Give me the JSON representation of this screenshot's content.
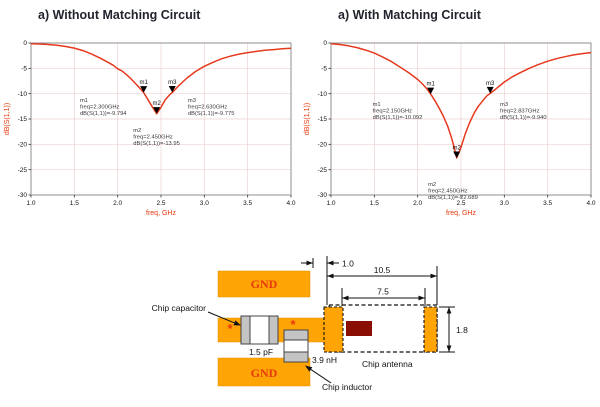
{
  "figure": {
    "subfig_left_title": "a) Without Matching Circuit",
    "subfig_right_title": "a) With Matching Circuit"
  },
  "chart_data": [
    {
      "id": "without_matching",
      "type": "line",
      "title": "a) Without Matching Circuit",
      "xlabel": "freq, GHz",
      "ylabel": "dB(S(1,1))",
      "xlim": [
        1.0,
        4.0
      ],
      "ylim": [
        -30,
        0
      ],
      "xticks": [
        "1.0",
        "1.5",
        "2.0",
        "2.5",
        "3.0",
        "3.5",
        "4.0"
      ],
      "yticks": [
        "0",
        "-5",
        "-10",
        "-15",
        "-20",
        "-25",
        "-30"
      ],
      "grid": true,
      "axis_label_color": "#e8380d",
      "series": [
        {
          "name": "dB(S(1,1))",
          "color": "#e6391e",
          "x": [
            1.0,
            1.1,
            1.2,
            1.3,
            1.4,
            1.5,
            1.6,
            1.7,
            1.8,
            1.9,
            1.95,
            2.0,
            2.05,
            2.1,
            2.15,
            2.2,
            2.25,
            2.3,
            2.35,
            2.4,
            2.45,
            2.5,
            2.55,
            2.6,
            2.63,
            2.7,
            2.75,
            2.8,
            2.9,
            3.0,
            3.1,
            3.2,
            3.3,
            3.4,
            3.5,
            3.6,
            3.7,
            3.8,
            3.9,
            4.0
          ],
          "y": [
            -0.15,
            -0.2,
            -0.3,
            -0.45,
            -0.7,
            -1.0,
            -1.5,
            -2.2,
            -3.0,
            -3.9,
            -4.4,
            -5.1,
            -5.5,
            -6.2,
            -7.0,
            -7.9,
            -8.8,
            -9.794,
            -11.2,
            -12.6,
            -13.95,
            -12.7,
            -11.2,
            -10.2,
            -9.775,
            -8.5,
            -7.7,
            -6.9,
            -5.6,
            -4.6,
            -3.8,
            -3.1,
            -2.6,
            -2.2,
            -1.9,
            -1.65,
            -1.45,
            -1.3,
            -1.15,
            -1.05
          ]
        }
      ],
      "markers": [
        {
          "name": "m1",
          "x": 2.3,
          "y": -9.794,
          "text_x": 1.565,
          "text_y": -11.6,
          "lines": [
            "m1",
            "freq=2.300GHz",
            "dB(S(1,1))=-9.794"
          ]
        },
        {
          "name": "m2",
          "x": 2.45,
          "y": -13.95,
          "text_x": 2.18,
          "text_y": -17.6,
          "lines": [
            "m2",
            "freq=2.450GHz",
            "dB(S(1,1))=-13.95"
          ]
        },
        {
          "name": "m3",
          "x": 2.63,
          "y": -9.775,
          "text_x": 2.81,
          "text_y": -11.6,
          "lines": [
            "m3",
            "freq=2.630GHz",
            "dB(S(1,1))=-9.775"
          ]
        }
      ]
    },
    {
      "id": "with_matching",
      "type": "line",
      "title": "a) With Matching Circuit",
      "xlabel": "freq, GHz",
      "ylabel": "dB(S(1,1))",
      "xlim": [
        1.0,
        4.0
      ],
      "ylim": [
        -30,
        0
      ],
      "xticks": [
        "1.0",
        "1.5",
        "2.0",
        "2.5",
        "3.0",
        "3.5",
        "4.0"
      ],
      "yticks": [
        "0",
        "-5",
        "-10",
        "-15",
        "-20",
        "-25",
        "-30"
      ],
      "grid": true,
      "axis_label_color": "#e8380d",
      "series": [
        {
          "name": "dB(S(1,1))",
          "color": "#e6391e",
          "x": [
            1.0,
            1.1,
            1.2,
            1.3,
            1.4,
            1.5,
            1.6,
            1.7,
            1.8,
            1.9,
            2.0,
            2.05,
            2.1,
            2.15,
            2.2,
            2.25,
            2.3,
            2.35,
            2.4,
            2.45,
            2.5,
            2.55,
            2.6,
            2.65,
            2.7,
            2.75,
            2.8,
            2.837,
            2.9,
            3.0,
            3.1,
            3.2,
            3.3,
            3.4,
            3.5,
            3.6,
            3.7,
            3.8,
            3.9,
            4.0
          ],
          "y": [
            -0.15,
            -0.3,
            -0.55,
            -0.9,
            -1.4,
            -2.0,
            -2.8,
            -3.7,
            -4.8,
            -5.9,
            -7.2,
            -8.0,
            -8.9,
            -10.092,
            -11.4,
            -12.9,
            -14.6,
            -16.6,
            -19.2,
            -22.689,
            -20.6,
            -17.9,
            -15.7,
            -13.9,
            -12.5,
            -11.4,
            -10.4,
            -9.94,
            -9.1,
            -7.7,
            -6.6,
            -5.7,
            -4.9,
            -4.2,
            -3.6,
            -3.1,
            -2.7,
            -2.35,
            -2.1,
            -1.9
          ]
        }
      ],
      "markers": [
        {
          "name": "m1",
          "x": 2.15,
          "y": -10.092,
          "text_x": 1.48,
          "text_y": -12.4,
          "lines": [
            "m1",
            "freq=2.150GHz",
            "dB(S(1,1))=-10.092"
          ]
        },
        {
          "name": "m2",
          "x": 2.45,
          "y": -22.689,
          "text_x": 2.12,
          "text_y": -28.2,
          "lines": [
            "m2",
            "freq=2.450GHz",
            "dB(S(1,1))=-22.689"
          ]
        },
        {
          "name": "m3",
          "x": 2.837,
          "y": -9.94,
          "text_x": 2.95,
          "text_y": -12.4,
          "lines": [
            "m3",
            "freq=2.837GHz",
            "dB(S(1,1))=-9.940"
          ]
        }
      ]
    }
  ],
  "diagram": {
    "gnd_label": "GND",
    "chip_capacitor_label": "Chip capacitor",
    "chip_inductor_label": "Chip inductor",
    "chip_antenna_label": "Chip antenna",
    "capacitor_value": "1.5 pF",
    "inductor_value": "3.9 nH",
    "port_marker": "*",
    "dim_feed_offset": "1.0",
    "dim_antenna_length": "10.5",
    "dim_pad_spacing": "7.5",
    "dim_antenna_width": "1.8",
    "colors": {
      "copper": "#ffa405",
      "gnd_text": "#e8380d",
      "antenna_element": "#8b0e04",
      "curve": "#e6391e"
    }
  }
}
